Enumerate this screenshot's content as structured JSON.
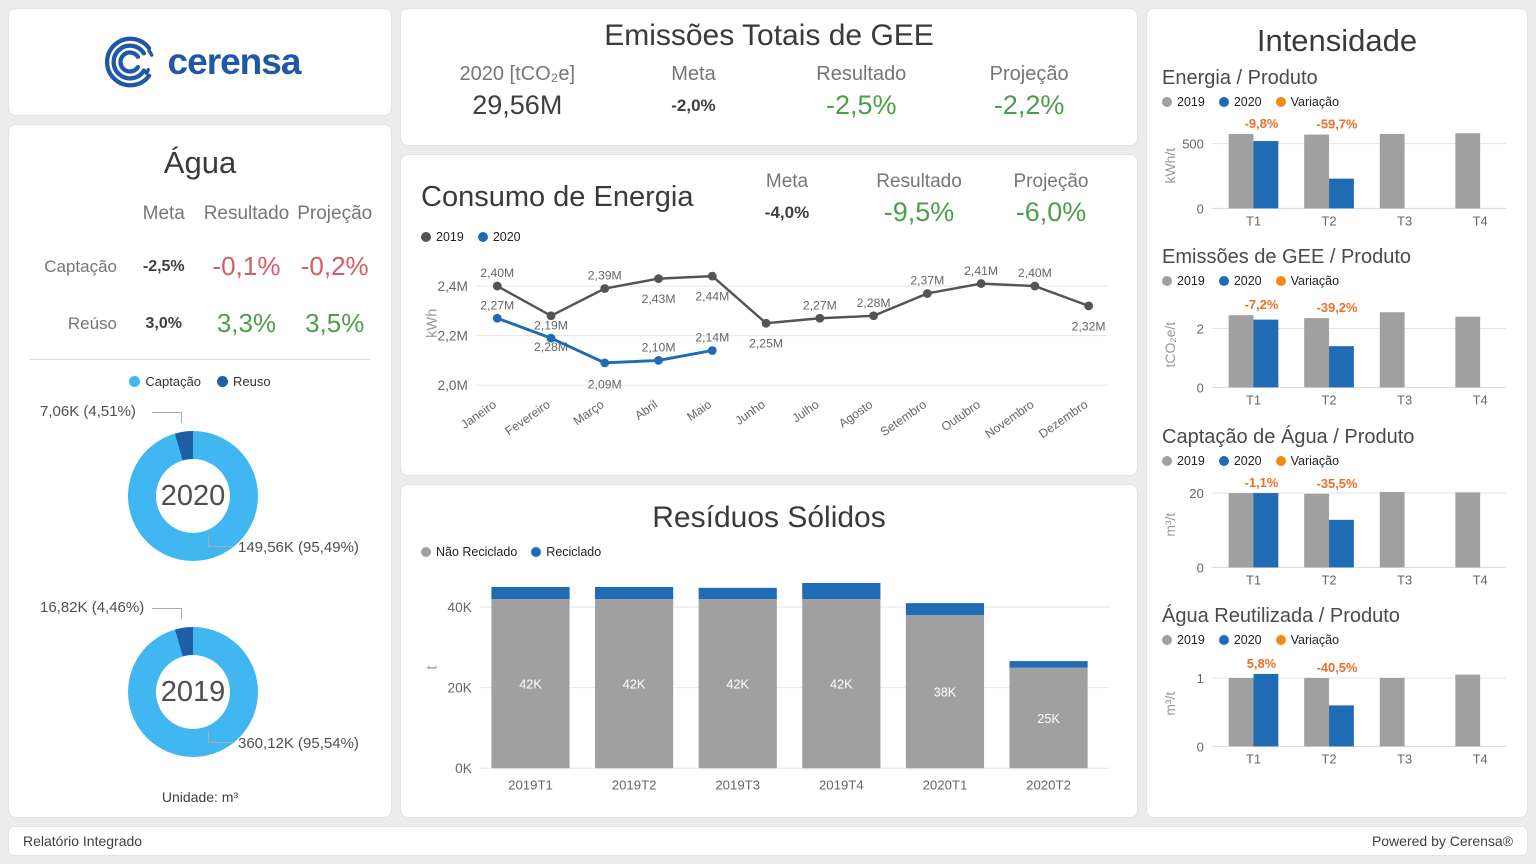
{
  "page": {
    "logo_text": "cerensa",
    "footer_left": "Relatório Integrado",
    "footer_right": "Powered by Cerensa®"
  },
  "colors": {
    "accent_blue": "#1f6cb5",
    "light_blue": "#41b7f1",
    "dark_blue": "#1d5fa5",
    "series_gray": "#a0a0a0",
    "series_dark_gray": "#545454",
    "orange_text": "#e8702a",
    "orange_dot": "#f28a0f",
    "green": "#4d9e4c",
    "red": "#d55c64",
    "logo_blue": "#2057a7"
  },
  "agua": {
    "title": "Água",
    "col_meta": "Meta",
    "col_resultado": "Resultado",
    "col_projecao": "Projeção",
    "rows": [
      {
        "label": "Captação",
        "meta": "-2,5%",
        "resultado": "-0,1%",
        "projecao": "-0,2%",
        "tone": "red"
      },
      {
        "label": "Reúso",
        "meta": "3,0%",
        "resultado": "3,3%",
        "projecao": "3,5%",
        "tone": "green"
      }
    ],
    "legend": [
      {
        "label": "Captação",
        "color": "#41b7f1"
      },
      {
        "label": "Reuso",
        "color": "#1d5fa5"
      }
    ],
    "donuts": [
      {
        "year": "2020",
        "callout_small": "7,06K (4,51%)",
        "callout_big": "149,56K (95,49%)",
        "small_pct": 4.51,
        "big_pct": 95.49
      },
      {
        "year": "2019",
        "callout_small": "16,82K (4,46%)",
        "callout_big": "360,12K (95,54%)",
        "small_pct": 4.46,
        "big_pct": 95.54
      }
    ],
    "unit_note": "Unidade: m³"
  },
  "gee": {
    "title": "Emissões Totais de GEE",
    "value_label": "2020 [tCO₂e]",
    "value": "29,56M",
    "meta_label": "Meta",
    "meta_value": "-2,0%",
    "resultado_label": "Resultado",
    "resultado_value": "-2,5%",
    "projecao_label": "Projeção",
    "projecao_value": "-2,2%"
  },
  "energia": {
    "title": "Consumo de Energia",
    "meta_label": "Meta",
    "meta_value": "-4,0%",
    "resultado_label": "Resultado",
    "resultado_value": "-9,5%",
    "projecao_label": "Projeção",
    "projecao_value": "-6,0%"
  },
  "residuos": {
    "title": "Resíduos Sólidos"
  },
  "intensidade": {
    "title": "Intensidade",
    "legend": [
      {
        "name": "2019",
        "color": "#a0a0a0"
      },
      {
        "name": "2020",
        "color": "#1f6cb5"
      },
      {
        "name": "Variação",
        "color": "#f28a0f"
      }
    ]
  },
  "chart_data": [
    {
      "id": "energia_line",
      "type": "line",
      "title": "Consumo de Energia",
      "ylabel": "kWh",
      "x": [
        "Janeiro",
        "Fevereiro",
        "Março",
        "Abril",
        "Maio",
        "Junho",
        "Julho",
        "Agosto",
        "Setembro",
        "Outubro",
        "Novembro",
        "Dezembro"
      ],
      "yticks": [
        {
          "v": 2.0,
          "label": "2,0M"
        },
        {
          "v": 2.2,
          "label": "2,2M"
        },
        {
          "v": 2.4,
          "label": "2,4M"
        }
      ],
      "ylim": [
        1.97,
        2.53
      ],
      "legend": [
        {
          "name": "2019",
          "color": "#545454"
        },
        {
          "name": "2020",
          "color": "#1f6cb5"
        }
      ],
      "series": [
        {
          "name": "2019",
          "color": "#545454",
          "values": [
            2.4,
            2.28,
            2.39,
            2.43,
            2.44,
            2.25,
            2.27,
            2.28,
            2.37,
            2.41,
            2.4,
            2.32
          ],
          "labels": [
            "2,40M",
            "2,28M",
            "2,39M",
            "2,43M",
            "2,44M",
            "2,25M",
            "2,27M",
            "2,28M",
            "2,37M",
            "2,41M",
            "2,40M",
            "2,32M"
          ]
        },
        {
          "name": "2020",
          "color": "#1f6cb5",
          "values": [
            2.27,
            2.19,
            2.09,
            2.1,
            2.14
          ],
          "labels": [
            "2,27M",
            "2,19M",
            "2,09M",
            "2,10M",
            "2,14M"
          ]
        }
      ]
    },
    {
      "id": "residuos_bar",
      "type": "bar",
      "stacked": true,
      "title": "Resíduos Sólidos",
      "ylabel": "t",
      "categories": [
        "2019T1",
        "2019T2",
        "2019T3",
        "2019T4",
        "2020T1",
        "2020T2"
      ],
      "yticks": [
        {
          "v": 0,
          "label": "0K"
        },
        {
          "v": 20,
          "label": "20K"
        },
        {
          "v": 40,
          "label": "40K"
        }
      ],
      "ylim": [
        0,
        50
      ],
      "legend": [
        {
          "name": "Não Reciclado",
          "color": "#a0a0a0"
        },
        {
          "name": "Reciclado",
          "color": "#1f6cb5"
        }
      ],
      "series": [
        {
          "name": "Não Reciclado",
          "color": "#a0a0a0",
          "values": [
            42,
            42,
            42,
            42,
            38,
            25
          ],
          "labels": [
            "42K",
            "42K",
            "42K",
            "42K",
            "38K",
            "25K"
          ]
        },
        {
          "name": "Reciclado",
          "color": "#1f6cb5",
          "values": [
            3,
            3,
            2.8,
            4,
            3,
            1.6
          ],
          "labels": []
        }
      ]
    },
    {
      "id": "intensity_energia",
      "type": "bar",
      "title": "Energia / Produto",
      "ylabel": "kWh/t",
      "categories": [
        "T1",
        "T2",
        "T3",
        "T4"
      ],
      "yticks": [
        {
          "v": 0,
          "label": "0"
        },
        {
          "v": 500,
          "label": "500"
        }
      ],
      "ylim": [
        0,
        660
      ],
      "series": [
        {
          "name": "2019",
          "color": "#a0a0a0",
          "values": [
            575,
            570,
            575,
            580
          ]
        },
        {
          "name": "2020",
          "color": "#1f6cb5",
          "values": [
            520,
            230,
            null,
            null
          ]
        }
      ],
      "variacao": [
        "-9,8%",
        "-59,7%",
        null,
        null
      ]
    },
    {
      "id": "intensity_gee",
      "type": "bar",
      "title": "Emissões de GEE / Produto",
      "ylabel": "tCO₂e/t",
      "categories": [
        "T1",
        "T2",
        "T3",
        "T4"
      ],
      "yticks": [
        {
          "v": 0,
          "label": "0"
        },
        {
          "v": 2,
          "label": "2"
        }
      ],
      "ylim": [
        0,
        2.9
      ],
      "series": [
        {
          "name": "2019",
          "color": "#a0a0a0",
          "values": [
            2.45,
            2.35,
            2.55,
            2.4
          ]
        },
        {
          "name": "2020",
          "color": "#1f6cb5",
          "values": [
            2.3,
            1.4,
            null,
            null
          ]
        }
      ],
      "variacao": [
        "-7,2%",
        "-39,2%",
        null,
        null
      ]
    },
    {
      "id": "intensity_agua",
      "type": "bar",
      "title": "Captação de Água / Produto",
      "ylabel": "m³/t",
      "categories": [
        "T1",
        "T2",
        "T3",
        "T4"
      ],
      "yticks": [
        {
          "v": 0,
          "label": "0"
        },
        {
          "v": 20,
          "label": "20"
        }
      ],
      "ylim": [
        0,
        23
      ],
      "series": [
        {
          "name": "2019",
          "color": "#a0a0a0",
          "values": [
            20,
            19.8,
            20.3,
            20.2
          ]
        },
        {
          "name": "2020",
          "color": "#1f6cb5",
          "values": [
            20,
            12.8,
            null,
            null
          ]
        }
      ],
      "variacao": [
        "-1,1%",
        "-35,5%",
        null,
        null
      ]
    },
    {
      "id": "intensity_reuso",
      "type": "bar",
      "title": "Água Reutilizada / Produto",
      "ylabel": "m³/t",
      "categories": [
        "T1",
        "T2",
        "T3",
        "T4"
      ],
      "yticks": [
        {
          "v": 0,
          "label": "0"
        },
        {
          "v": 1,
          "label": "1"
        }
      ],
      "ylim": [
        0,
        1.25
      ],
      "series": [
        {
          "name": "2019",
          "color": "#a0a0a0",
          "values": [
            1.0,
            1.0,
            1.0,
            1.05
          ]
        },
        {
          "name": "2020",
          "color": "#1f6cb5",
          "values": [
            1.06,
            0.6,
            null,
            null
          ]
        }
      ],
      "variacao": [
        "5,8%",
        "-40,5%",
        null,
        null
      ]
    }
  ]
}
